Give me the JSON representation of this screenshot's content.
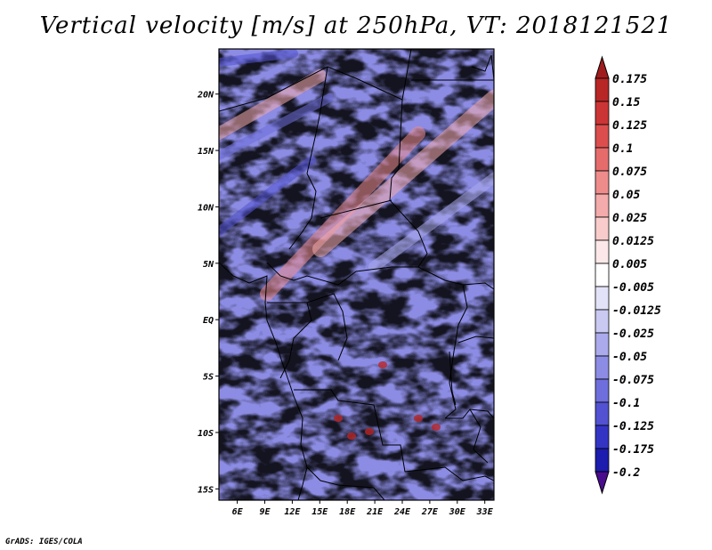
{
  "title": "Vertical velocity [m/s] at 250hPa, VT: 2018121521",
  "credit": "GrADS: IGES/COLA",
  "map": {
    "variable": "Vertical velocity",
    "units": "m/s",
    "level": "250hPa",
    "valid_time": "2018121521",
    "lon_range": [
      4,
      34
    ],
    "lat_range": [
      -16,
      24
    ],
    "lon_ticks": [
      "6E",
      "9E",
      "12E",
      "15E",
      "18E",
      "21E",
      "24E",
      "27E",
      "30E",
      "33E"
    ],
    "lon_tick_values": [
      6,
      9,
      12,
      15,
      18,
      21,
      24,
      27,
      30,
      33
    ],
    "lat_ticks": [
      "20N",
      "15N",
      "10N",
      "5N",
      "EQ",
      "5S",
      "10S",
      "15S"
    ],
    "lat_tick_values": [
      20,
      15,
      10,
      5,
      0,
      -5,
      -10,
      -15
    ]
  },
  "colorbar": {
    "labels": [
      "0.175",
      "0.15",
      "0.125",
      "0.1",
      "0.075",
      "0.05",
      "0.025",
      "0.0125",
      "0.005",
      "-0.005",
      "-0.0125",
      "-0.025",
      "-0.05",
      "-0.075",
      "-0.1",
      "-0.125",
      "-0.175",
      "-0.2"
    ],
    "colors": [
      "#a01c1c",
      "#b82626",
      "#cc3535",
      "#dc4e4e",
      "#e66c6c",
      "#ee8c8c",
      "#f4abab",
      "#f9cccc",
      "#fce8e8",
      "#ffffff",
      "#e2e2f8",
      "#c9c9f2",
      "#aaaaec",
      "#8c8ce4",
      "#6e6edc",
      "#5252d2",
      "#3434c4",
      "#1c1cae",
      "#0c0c8e",
      "#4a0c8e"
    ]
  }
}
